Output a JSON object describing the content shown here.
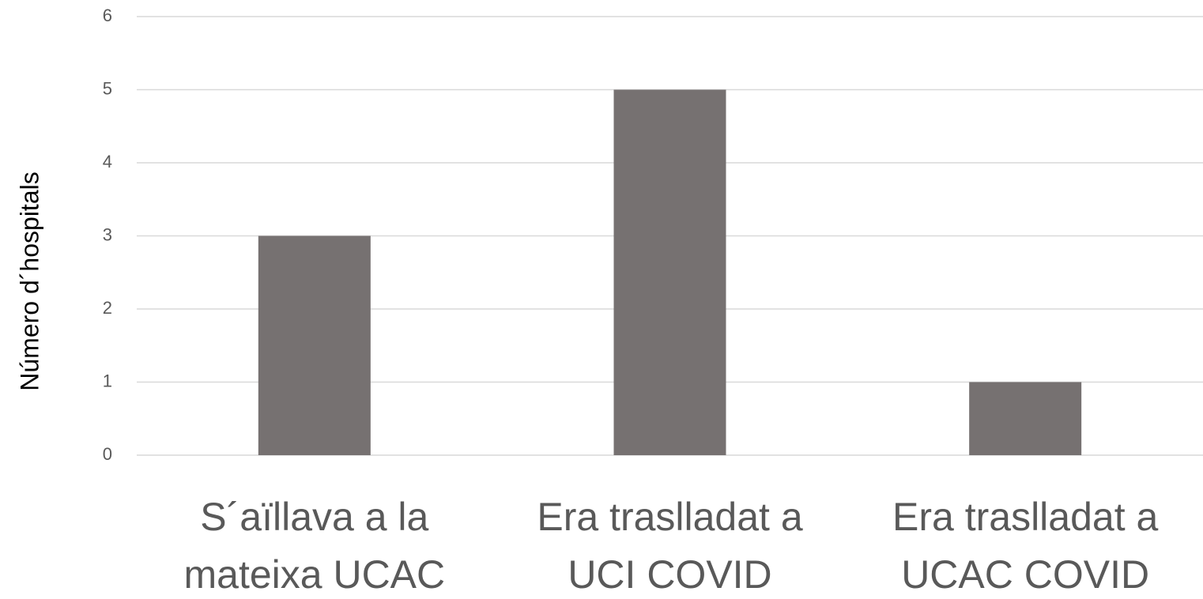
{
  "chart_data": {
    "type": "bar",
    "y_label": "Número d´hospitals",
    "categories": [
      [
        "S´aïllava a la",
        "mateixa UCAC"
      ],
      [
        "Era traslladat a",
        "UCI COVID"
      ],
      [
        "Era traslladat a",
        "UCAC COVID"
      ]
    ],
    "values": [
      3,
      5,
      1
    ],
    "color": "#767171",
    "ylim": [
      0,
      6
    ],
    "yticks": [
      0,
      1,
      2,
      3,
      4,
      5,
      6
    ],
    "grid": true
  }
}
